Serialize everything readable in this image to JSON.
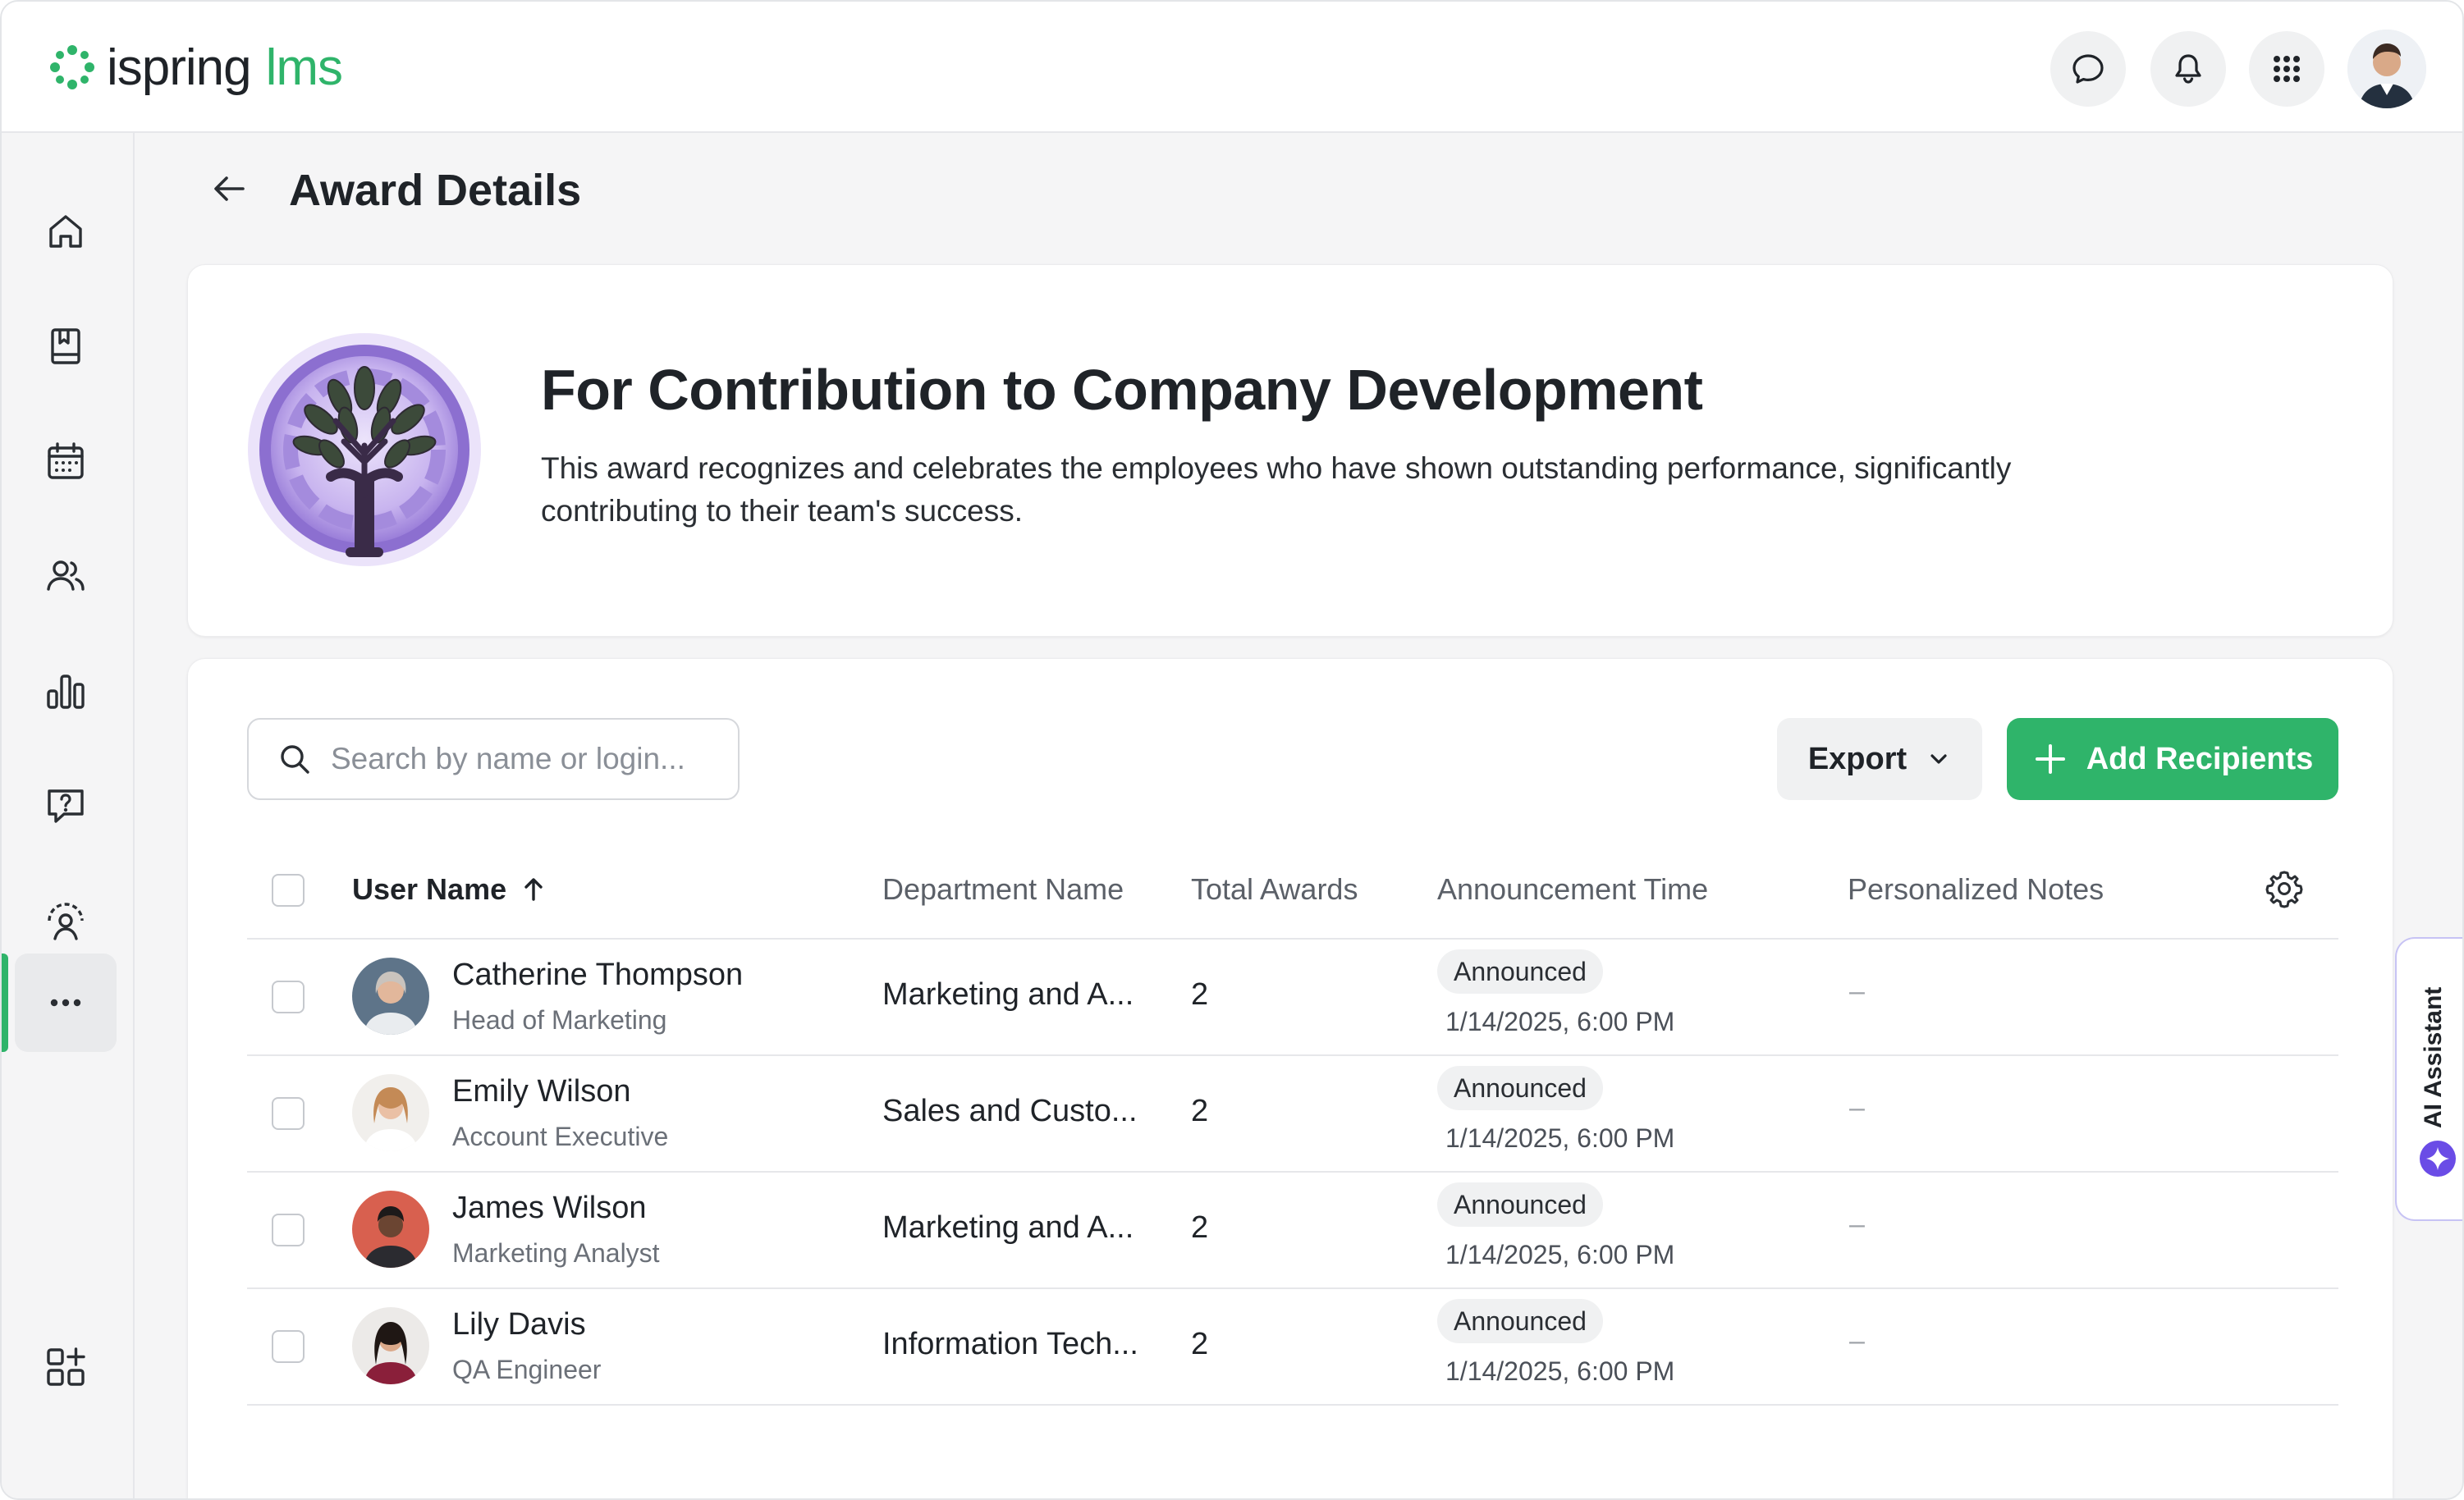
{
  "header": {
    "brand_name": "ispring",
    "brand_suffix": "lms",
    "icons": [
      "chat-icon",
      "bell-icon",
      "apps-grid-icon"
    ],
    "accent_color": "#2fb46a"
  },
  "sidebar": {
    "items": [
      {
        "name": "home",
        "icon": "home-icon"
      },
      {
        "name": "courses",
        "icon": "book-icon"
      },
      {
        "name": "calendar",
        "icon": "calendar-icon"
      },
      {
        "name": "users",
        "icon": "users-icon"
      },
      {
        "name": "reports",
        "icon": "bar-chart-icon"
      },
      {
        "name": "help",
        "icon": "question-icon"
      },
      {
        "name": "account",
        "icon": "user-settings-icon"
      },
      {
        "name": "more",
        "icon": "more-dots-icon",
        "active": true
      },
      {
        "name": "add-widget",
        "icon": "widgets-plus-icon"
      }
    ]
  },
  "page": {
    "title": "Award Details"
  },
  "award": {
    "title": "For Contribution to Company Development",
    "description": "This award recognizes and celebrates the employees who have shown outstanding performance, significantly contributing to their team's success."
  },
  "toolbar": {
    "search_placeholder": "Search by name or login...",
    "export_label": "Export",
    "add_label": "Add Recipients"
  },
  "table": {
    "columns": {
      "user": "User Name",
      "department": "Department Name",
      "total": "Total Awards",
      "time": "Announcement Time",
      "notes": "Personalized Notes"
    },
    "rows": [
      {
        "name": "Catherine Thompson",
        "role": "Head of Marketing",
        "department": "Marketing and A...",
        "total": "2",
        "status": "Announced",
        "time": "1/14/2025, 6:00 PM",
        "notes": "–"
      },
      {
        "name": "Emily Wilson",
        "role": "Account Executive",
        "department": "Sales and Custo...",
        "total": "2",
        "status": "Announced",
        "time": "1/14/2025, 6:00 PM",
        "notes": "–"
      },
      {
        "name": "James Wilson",
        "role": "Marketing Analyst",
        "department": "Marketing and A...",
        "total": "2",
        "status": "Announced",
        "time": "1/14/2025, 6:00 PM",
        "notes": "–"
      },
      {
        "name": "Lily Davis",
        "role": "QA Engineer",
        "department": "Information Tech...",
        "total": "2",
        "status": "Announced",
        "time": "1/14/2025, 6:00 PM",
        "notes": "–"
      }
    ]
  },
  "ai_assistant": {
    "label": "AI Assistant"
  }
}
